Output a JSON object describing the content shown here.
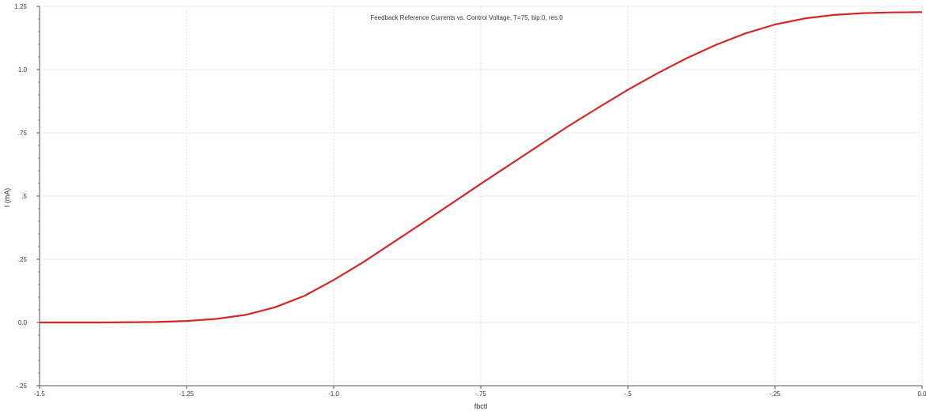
{
  "chart_data": {
    "type": "line",
    "title": "Feedback Reference Currents vs. Control Voltage, T=75, bip:0, res:0",
    "xlabel": "fbctl",
    "ylabel": "I (mA)",
    "xlim": [
      -1.5,
      0.0
    ],
    "ylim": [
      -0.25,
      1.25
    ],
    "grid": true,
    "x_ticks": [
      {
        "value": -1.5,
        "label": "-1.5"
      },
      {
        "value": -1.25,
        "label": "-1.25"
      },
      {
        "value": -1.0,
        "label": "-1.0"
      },
      {
        "value": -0.75,
        "label": "-.75"
      },
      {
        "value": -0.5,
        "label": "-.5"
      },
      {
        "value": -0.25,
        "label": "-.25"
      },
      {
        "value": 0.0,
        "label": "0.0"
      }
    ],
    "y_ticks": [
      {
        "value": -0.25,
        "label": "-.25"
      },
      {
        "value": 0.0,
        "label": "0.0"
      },
      {
        "value": 0.25,
        "label": ".25"
      },
      {
        "value": 0.5,
        "label": ".5"
      },
      {
        "value": 0.75,
        "label": ".75"
      },
      {
        "value": 1.0,
        "label": "1.0"
      },
      {
        "value": 1.25,
        "label": "1.25"
      }
    ],
    "series": [
      {
        "color": "#d62728",
        "x": [
          -1.5,
          -1.4,
          -1.3,
          -1.25,
          -1.2,
          -1.15,
          -1.1,
          -1.05,
          -1.0,
          -0.95,
          -0.9,
          -0.85,
          -0.8,
          -0.75,
          -0.7,
          -0.65,
          -0.6,
          -0.55,
          -0.5,
          -0.45,
          -0.4,
          -0.35,
          -0.3,
          -0.25,
          -0.2,
          -0.15,
          -0.1,
          -0.05,
          0.0
        ],
        "y": [
          0.0,
          0.0,
          0.002,
          0.006,
          0.014,
          0.03,
          0.06,
          0.105,
          0.168,
          0.238,
          0.315,
          0.392,
          0.47,
          0.548,
          0.625,
          0.702,
          0.778,
          0.85,
          0.92,
          0.985,
          1.045,
          1.098,
          1.143,
          1.178,
          1.202,
          1.216,
          1.223,
          1.226,
          1.227
        ]
      }
    ]
  }
}
